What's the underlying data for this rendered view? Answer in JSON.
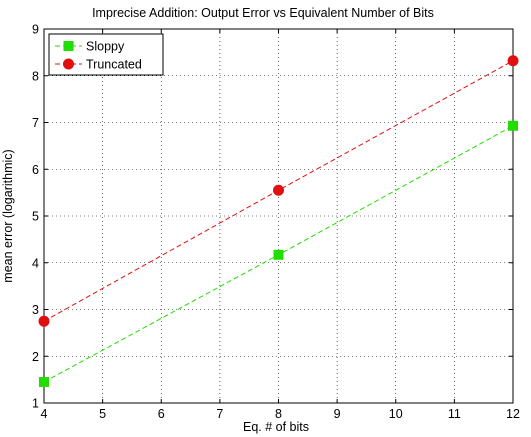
{
  "chart_data": {
    "type": "line",
    "title": "Imprecise Addition: Output Error vs Equivalent Number of Bits",
    "xlabel": "Eq. # of bits",
    "ylabel": "mean error (logarithmic)",
    "xlim": [
      4,
      12
    ],
    "ylim": [
      1,
      9
    ],
    "xticks": [
      4,
      5,
      6,
      7,
      8,
      9,
      10,
      11,
      12
    ],
    "yticks": [
      1,
      2,
      3,
      4,
      5,
      6,
      7,
      8,
      9
    ],
    "grid": true,
    "legend_position": "top-left",
    "series": [
      {
        "name": "Sloppy",
        "x": [
          4,
          8,
          12
        ],
        "y": [
          1.45,
          4.17,
          6.93
        ],
        "color": "#22dd00",
        "marker": "square",
        "line_style": "dashed"
      },
      {
        "name": "Truncated",
        "x": [
          4,
          8,
          12
        ],
        "y": [
          2.75,
          5.55,
          8.32
        ],
        "color": "#e01010",
        "marker": "circle",
        "line_style": "dashed"
      }
    ]
  }
}
